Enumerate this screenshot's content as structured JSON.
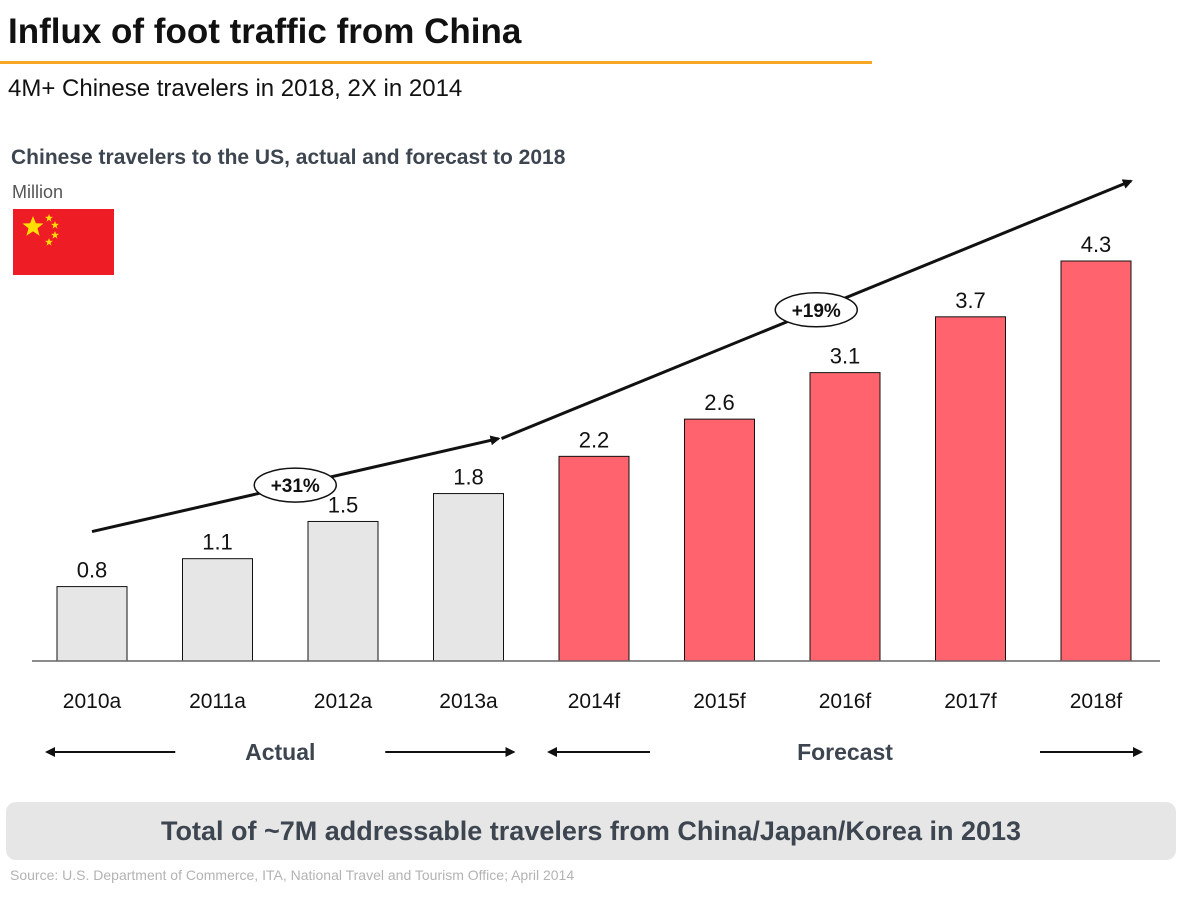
{
  "header": {
    "title": "Influx of foot traffic from China",
    "subtitle": "4M+ Chinese travelers in 2018, 2X in 2014"
  },
  "chart_data": {
    "type": "bar",
    "title": "Chinese travelers to the US, actual and forecast to 2018",
    "unit_label": "Million",
    "categories": [
      "2010a",
      "2011a",
      "2012a",
      "2013a",
      "2014f",
      "2015f",
      "2016f",
      "2017f",
      "2018f"
    ],
    "values": [
      0.8,
      1.1,
      1.5,
      1.8,
      2.2,
      2.6,
      3.1,
      3.7,
      4.3
    ],
    "bar_kind": [
      "actual",
      "actual",
      "actual",
      "actual",
      "forecast",
      "forecast",
      "forecast",
      "forecast",
      "forecast"
    ],
    "colors": {
      "actual": "#e6e6e6",
      "forecast": "#ff636d"
    },
    "ylim": [
      0,
      4.3
    ],
    "grid": false,
    "growth_labels": [
      {
        "label": "+31%",
        "span": "actual"
      },
      {
        "label": "+19%",
        "span": "forecast"
      }
    ],
    "period_labels": {
      "actual": "Actual",
      "forecast": "Forecast"
    }
  },
  "banner": {
    "text": "Total of ~7M addressable travelers from China/Japan/Korea in 2013"
  },
  "footer": {
    "source": "Source: U.S. Department of Commerce, ITA, National Travel and Tourism Office;  April 2014"
  },
  "flag": {
    "icon": "china-flag-icon",
    "colors": {
      "field": "#ee1c25",
      "star": "#ffde00"
    }
  }
}
